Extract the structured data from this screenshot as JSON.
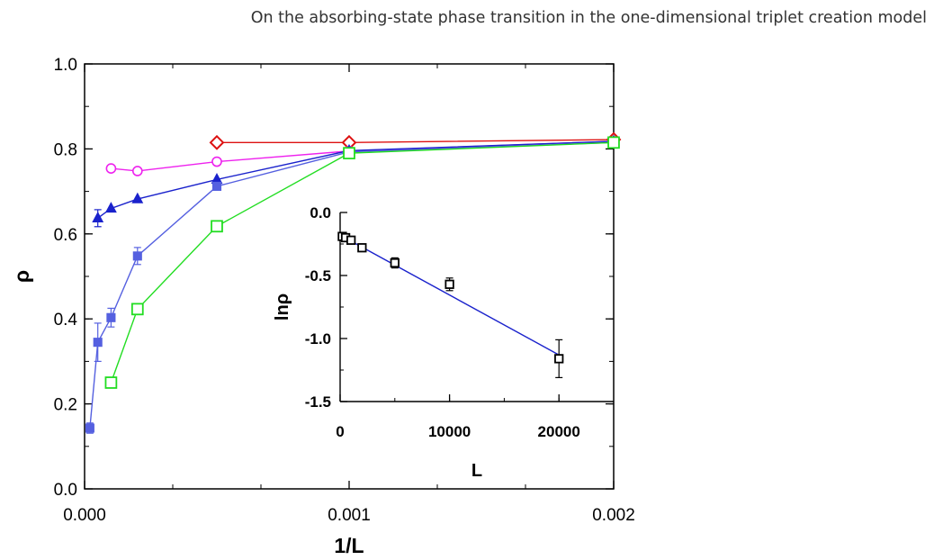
{
  "header": {
    "title": "On the absorbing-state phase transition in the one-dimensional triplet creation model"
  },
  "chart_data": [
    {
      "type": "line",
      "xlabel": "1/L",
      "ylabel": "ρ",
      "xlim": [
        0.0,
        0.002
      ],
      "ylim": [
        0.0,
        1.0
      ],
      "xticks": [
        0.0,
        0.001,
        0.002
      ],
      "xtick_labels": [
        "0.000",
        "0.001",
        "0.002"
      ],
      "yticks": [
        0.0,
        0.2,
        0.4,
        0.6,
        0.8,
        1.0
      ],
      "ytick_labels": [
        "0.0",
        "0.2",
        "0.4",
        "0.6",
        "0.8",
        "1.0"
      ],
      "grid": false,
      "series": [
        {
          "color": "#dd1111",
          "marker": "diamond-open",
          "x": [
            0.0005,
            0.001,
            0.002
          ],
          "y": [
            0.815,
            0.815,
            0.822
          ],
          "err": [
            0,
            0,
            0
          ]
        },
        {
          "color": "#ee22ee",
          "marker": "circle-open",
          "x": [
            0.0001,
            0.0002,
            0.0005,
            0.001,
            0.002
          ],
          "y": [
            0.754,
            0.748,
            0.77,
            0.795,
            0.818
          ],
          "err": [
            0,
            0,
            0,
            0,
            0
          ]
        },
        {
          "color": "#1a22cc",
          "marker": "triangle-filled",
          "x": [
            5e-05,
            0.0001,
            0.0002,
            0.0005,
            0.001,
            0.002
          ],
          "y": [
            0.637,
            0.66,
            0.682,
            0.728,
            0.796,
            0.818
          ],
          "err": [
            0.02,
            0,
            0,
            0,
            0,
            0
          ]
        },
        {
          "color": "#5560e0",
          "marker": "square-filled",
          "x": [
            2e-05,
            5e-05,
            0.0001,
            0.0002,
            0.0005,
            0.001,
            0.002
          ],
          "y": [
            0.143,
            0.345,
            0.403,
            0.548,
            0.712,
            0.793,
            0.815
          ],
          "err": [
            0.012,
            0.045,
            0.022,
            0.02,
            0,
            0,
            0
          ]
        },
        {
          "color": "#22dd22",
          "marker": "square-open",
          "x": [
            0.0001,
            0.0002,
            0.0005,
            0.001,
            0.002
          ],
          "y": [
            0.25,
            0.423,
            0.618,
            0.79,
            0.815
          ],
          "err": [
            0,
            0,
            0,
            0,
            0
          ]
        }
      ]
    },
    {
      "type": "line",
      "xlabel": "L",
      "ylabel": "lnρ",
      "xlim": [
        0,
        25000
      ],
      "ylim": [
        -1.5,
        0.0
      ],
      "xticks": [
        0,
        10000,
        20000
      ],
      "xtick_labels": [
        "0",
        "10000",
        "20000"
      ],
      "yticks": [
        0.0,
        -0.5,
        -1.0,
        -1.5
      ],
      "ytick_labels": [
        "0.0",
        "-0.5",
        "-1.0",
        "-1.5"
      ],
      "grid": false,
      "fit_line": {
        "color": "#1a22cc",
        "x": [
          0,
          20000
        ],
        "y": [
          -0.18,
          -1.13
        ]
      },
      "series": [
        {
          "color": "#000000",
          "marker": "square-open",
          "x": [
            200,
            500,
            1000,
            2000,
            5000,
            10000,
            20000
          ],
          "y": [
            -0.19,
            -0.2,
            -0.22,
            -0.28,
            -0.4,
            -0.57,
            -1.16
          ],
          "err": [
            0.02,
            0.02,
            0.02,
            0.02,
            0.04,
            0.05,
            0.15
          ]
        }
      ]
    }
  ]
}
